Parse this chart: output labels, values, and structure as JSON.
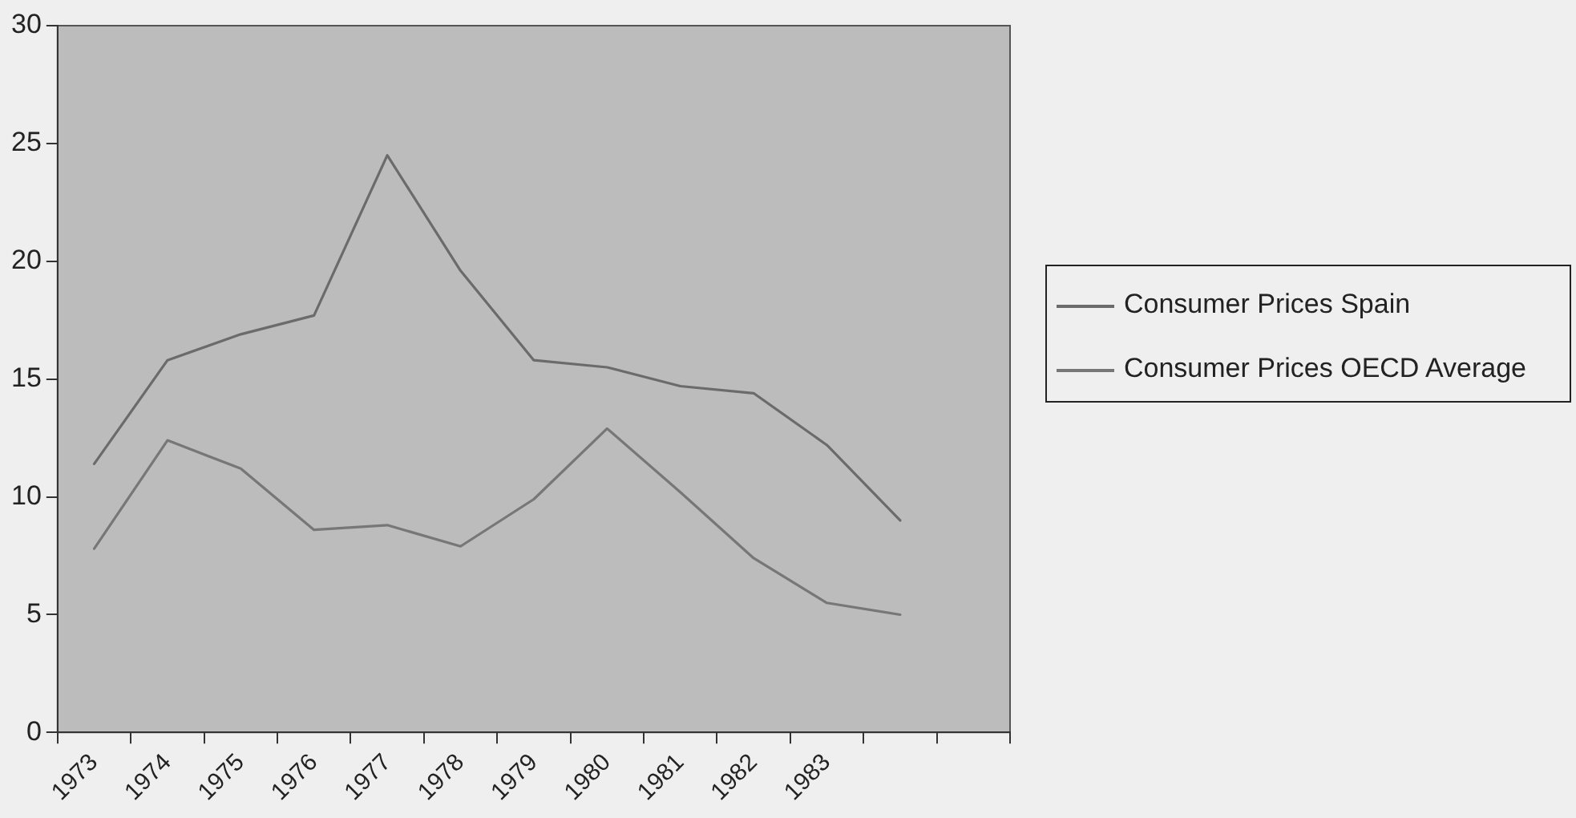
{
  "chart_data": {
    "type": "line",
    "categories": [
      "1973",
      "1974",
      "1975",
      "1976",
      "1977",
      "1978",
      "1979",
      "1980",
      "1981",
      "1982",
      "1983",
      null,
      null
    ],
    "series": [
      {
        "name": "Consumer Prices Spain",
        "color": "#6b6b6b",
        "values": [
          11.4,
          15.8,
          16.9,
          17.7,
          24.5,
          19.6,
          15.8,
          15.5,
          14.7,
          14.4,
          12.2,
          9.0,
          null
        ]
      },
      {
        "name": "Consumer Prices OECD Average",
        "color": "#777777",
        "values": [
          7.8,
          12.4,
          11.2,
          8.6,
          8.8,
          7.9,
          9.9,
          12.9,
          10.2,
          7.4,
          5.5,
          5.0,
          null
        ]
      }
    ],
    "ylim": [
      0,
      30
    ],
    "yticks": [
      0,
      5,
      10,
      15,
      20,
      25,
      30
    ],
    "grid": false,
    "legend": "right",
    "marker": "none",
    "line_style": "solid"
  }
}
